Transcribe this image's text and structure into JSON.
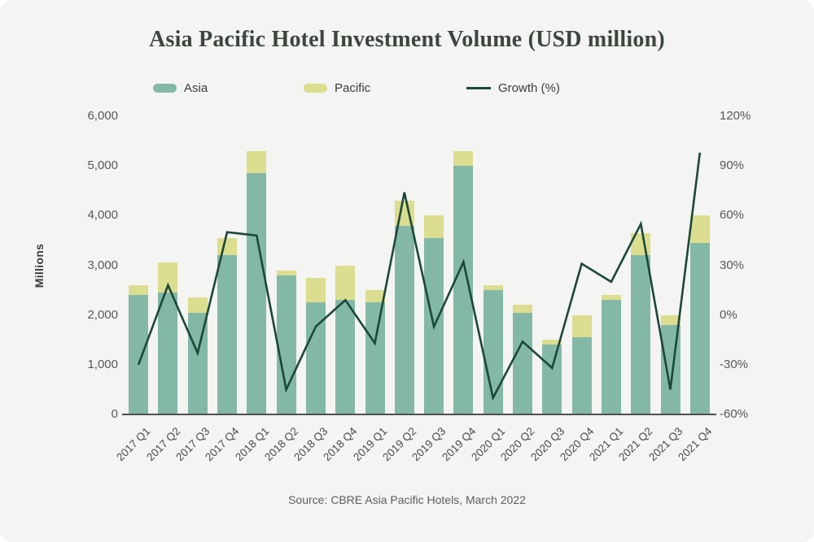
{
  "title": "Asia Pacific Hotel Investment Volume (USD million)",
  "source": "Source: CBRE Asia Pacific Hotels, March 2022",
  "colors": {
    "background": "#f4f4f2",
    "asia_bar": "#83b8a7",
    "pacific_bar": "#dbdd8f",
    "growth_line": "#1c473b",
    "axis_line": "#4f4f4f",
    "title_text": "#3c463f",
    "tick_text": "#575757"
  },
  "legend": [
    {
      "label": "Asia",
      "type": "swatch",
      "color": "#83b8a7",
      "x": 188
    },
    {
      "label": "Pacific",
      "type": "swatch",
      "color": "#dbdd8f",
      "x": 373
    },
    {
      "label": "Growth (%)",
      "type": "line",
      "color": "#1c473b",
      "x": 573
    }
  ],
  "chart_data": {
    "type": "bar",
    "subtype": "stacked-bars-with-line",
    "title": "Asia Pacific Hotel Investment Volume (USD million)",
    "categories": [
      "2017 Q1",
      "2017 Q2",
      "2017 Q3",
      "2017 Q4",
      "2018 Q1",
      "2018 Q2",
      "2018 Q3",
      "2018 Q4",
      "2019 Q1",
      "2019 Q2",
      "2019 Q3",
      "2019 Q4",
      "2020 Q1",
      "2020 Q2",
      "2020 Q3",
      "2020 Q4",
      "2021 Q1",
      "2021 Q2",
      "2021 Q3",
      "2021 Q4"
    ],
    "series": [
      {
        "name": "Asia",
        "type": "bar",
        "stack": "volume",
        "color": "#83b8a7",
        "values": [
          2400,
          2450,
          2050,
          3200,
          4850,
          2800,
          2250,
          2300,
          2250,
          3800,
          3550,
          5000,
          2500,
          2050,
          1400,
          1550,
          2300,
          3200,
          1800,
          3450
        ]
      },
      {
        "name": "Pacific",
        "type": "bar",
        "stack": "volume",
        "color": "#dbdd8f",
        "values": [
          200,
          600,
          300,
          350,
          450,
          100,
          500,
          700,
          250,
          500,
          450,
          300,
          100,
          150,
          100,
          450,
          100,
          450,
          200,
          550
        ]
      },
      {
        "name": "Growth (%)",
        "type": "line",
        "axis": "right",
        "color": "#1c473b",
        "values": [
          -30,
          18,
          -23,
          50,
          48,
          -45,
          -7,
          9,
          -17,
          74,
          -7,
          32,
          -50,
          -16,
          -32,
          31,
          20,
          55,
          -45,
          98
        ]
      }
    ],
    "left_axis": {
      "label": "Millions",
      "min": 0,
      "max": 6000,
      "step": 1000,
      "tick_labels": [
        "0",
        "1,000",
        "2,000",
        "3,000",
        "4,000",
        "5,000",
        "6,000"
      ]
    },
    "right_axis": {
      "min": -60,
      "max": 120,
      "step": 30,
      "tick_labels": [
        "-60%",
        "-30%",
        "0%",
        "30%",
        "60%",
        "90%",
        "120%"
      ]
    },
    "grid": false,
    "legend_position": "top"
  }
}
